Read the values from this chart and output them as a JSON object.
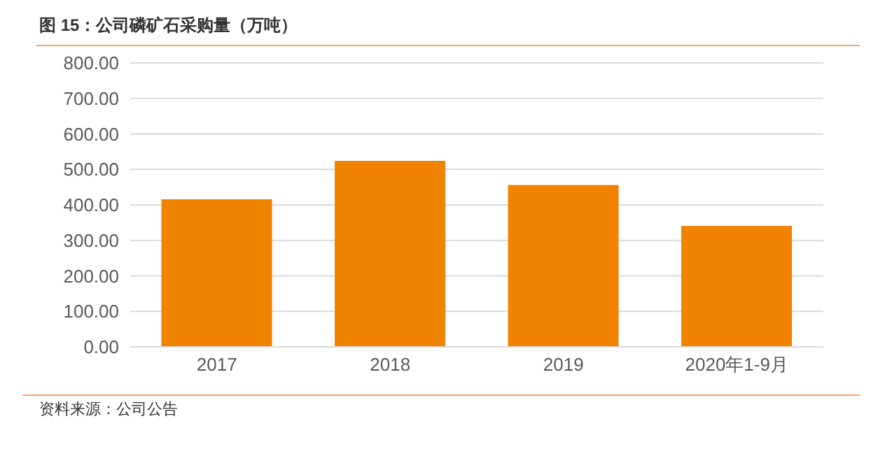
{
  "chart_data": {
    "type": "bar",
    "title": "图 15：公司磷矿石采购量（万吨）",
    "categories": [
      "2017",
      "2018",
      "2019",
      "2020年1-9月"
    ],
    "values": [
      416,
      524,
      456,
      341
    ],
    "color": "#f08300",
    "ylim": [
      0,
      800
    ],
    "yticks": [
      {
        "value": 0,
        "label": "0.00"
      },
      {
        "value": 100,
        "label": "100.00"
      },
      {
        "value": 200,
        "label": "200.00"
      },
      {
        "value": 300,
        "label": "300.00"
      },
      {
        "value": 400,
        "label": "400.00"
      },
      {
        "value": 500,
        "label": "500.00"
      },
      {
        "value": 600,
        "label": "600.00"
      },
      {
        "value": 700,
        "label": "700.00"
      },
      {
        "value": 800,
        "label": "800.00"
      }
    ],
    "grid": "y",
    "annotations": [
      "资料来源：公司公告"
    ]
  }
}
